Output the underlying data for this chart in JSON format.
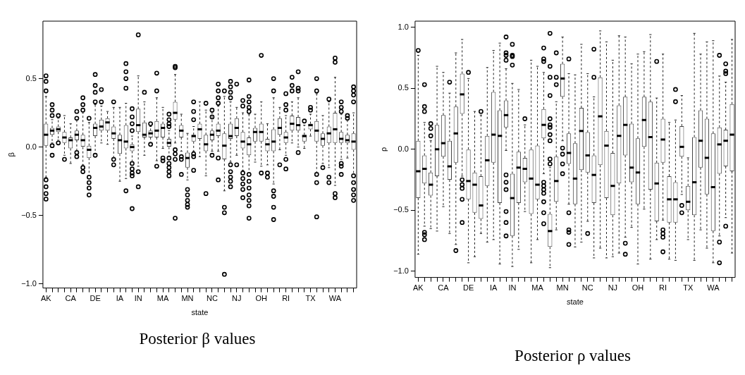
{
  "chart_data": [
    {
      "type": "box",
      "title": "Posterior β values",
      "xlabel": "state",
      "ylabel": "β",
      "categories": [
        "AK",
        null,
        null,
        null,
        "CA",
        null,
        null,
        null,
        "DE",
        null,
        null,
        null,
        "IA",
        null,
        null,
        "IN",
        null,
        null,
        null,
        "MA",
        null,
        null,
        null,
        "MN",
        null,
        null,
        null,
        "NC",
        null,
        null,
        null,
        "NJ",
        null,
        null,
        null,
        "OH",
        null,
        null,
        null,
        "RI",
        null,
        null,
        null,
        "TX",
        null,
        null,
        null,
        "WA",
        null,
        null,
        null
      ],
      "ylim": [
        -1.03,
        0.92
      ],
      "yticks": [
        {
          "value": -1.0,
          "label": "−1.0"
        },
        {
          "value": -0.5,
          "label": "−0.5"
        },
        {
          "value": 0.0,
          "label": "0.0"
        },
        {
          "value": 0.5,
          "label": "0.5"
        }
      ],
      "boxes": [
        {
          "low": -0.22,
          "q1": 0.01,
          "median": 0.09,
          "q3": 0.17,
          "high": 0.37,
          "outliers": [
            0.52,
            0.48,
            0.41,
            -0.24,
            -0.29,
            -0.34,
            -0.38
          ]
        },
        {
          "low": 0.03,
          "q1": 0.09,
          "median": 0.12,
          "q3": 0.14,
          "high": 0.2,
          "outliers": [
            0.31,
            0.27,
            0.23,
            0.01,
            -0.06
          ]
        },
        {
          "low": 0.05,
          "q1": 0.11,
          "median": 0.13,
          "q3": 0.15,
          "high": 0.21,
          "outliers": [
            0.23,
            0.03
          ]
        },
        {
          "low": -0.06,
          "q1": 0.03,
          "median": 0.07,
          "q3": 0.11,
          "high": 0.23,
          "outliers": [
            -0.09
          ]
        },
        {
          "low": -0.12,
          "q1": -0.01,
          "median": 0.05,
          "q3": 0.07,
          "high": 0.17
        },
        {
          "low": -0.03,
          "q1": 0.05,
          "median": 0.09,
          "q3": 0.12,
          "high": 0.2,
          "outliers": [
            0.26,
            0.21,
            -0.04,
            -0.07
          ]
        },
        {
          "low": -0.13,
          "q1": 0.0,
          "median": 0.05,
          "q3": 0.09,
          "high": 0.25,
          "outliers": [
            0.36,
            0.31,
            0.27,
            -0.15,
            -0.18
          ]
        },
        {
          "low": -0.21,
          "q1": -0.08,
          "median": -0.02,
          "q3": 0.01,
          "high": 0.18,
          "outliers": [
            0.21,
            -0.22,
            -0.26,
            -0.3,
            -0.35
          ]
        },
        {
          "low": -0.05,
          "q1": 0.08,
          "median": 0.14,
          "q3": 0.17,
          "high": 0.31,
          "outliers": [
            0.53,
            0.45,
            0.4,
            0.33,
            -0.06
          ]
        },
        {
          "low": 0.03,
          "q1": 0.12,
          "median": 0.15,
          "q3": 0.2,
          "high": 0.3,
          "outliers": [
            0.42,
            0.33
          ]
        },
        {
          "low": 0.02,
          "q1": 0.12,
          "median": 0.18,
          "q3": 0.21,
          "high": 0.26
        },
        {
          "low": -0.08,
          "q1": 0.06,
          "median": 0.1,
          "q3": 0.15,
          "high": 0.29,
          "outliers": [
            0.33,
            -0.09,
            -0.13
          ]
        },
        {
          "low": -0.25,
          "q1": -0.05,
          "median": 0.05,
          "q3": 0.09,
          "high": 0.29
        },
        {
          "low": -0.23,
          "q1": -0.01,
          "median": 0.04,
          "q3": 0.16,
          "high": 0.32,
          "outliers": [
            0.61,
            0.55,
            0.5,
            0.43,
            -0.32
          ]
        },
        {
          "low": -0.11,
          "q1": -0.03,
          "median": 0.0,
          "q3": 0.02,
          "high": 0.08,
          "outliers": [
            0.28,
            0.22,
            0.17,
            0.12,
            -0.12,
            -0.16,
            -0.19,
            -0.21,
            -0.45
          ]
        },
        {
          "low": -0.14,
          "q1": 0.11,
          "median": 0.16,
          "q3": 0.28,
          "high": 0.52,
          "outliers": [
            0.82,
            -0.18,
            -0.29
          ]
        },
        {
          "low": -0.06,
          "q1": 0.07,
          "median": 0.09,
          "q3": 0.18,
          "high": 0.33,
          "outliers": [
            0.4
          ]
        },
        {
          "low": 0.03,
          "q1": 0.07,
          "median": 0.1,
          "q3": 0.12,
          "high": 0.15,
          "outliers": [
            0.17,
            0.02
          ]
        },
        {
          "low": -0.1,
          "q1": 0.07,
          "median": 0.12,
          "q3": 0.19,
          "high": 0.36,
          "outliers": [
            0.54,
            0.41,
            -0.14
          ]
        },
        {
          "low": -0.01,
          "q1": 0.07,
          "median": 0.14,
          "q3": 0.17,
          "high": 0.29,
          "outliers": [
            -0.08,
            -0.1
          ]
        },
        {
          "low": -0.07,
          "q1": 0.0,
          "median": 0.03,
          "q3": 0.06,
          "high": 0.12,
          "outliers": [
            0.24,
            0.2,
            0.17,
            0.15,
            -0.08,
            -0.12,
            -0.15,
            -0.18,
            -0.21
          ]
        },
        {
          "low": 0.03,
          "q1": 0.2,
          "median": 0.25,
          "q3": 0.33,
          "high": 0.53,
          "outliers": [
            0.59,
            0.58,
            -0.02,
            -0.05,
            -0.09,
            -0.52
          ]
        },
        {
          "low": -0.03,
          "q1": 0.07,
          "median": 0.12,
          "q3": 0.16,
          "high": 0.24,
          "outliers": [
            -0.07,
            -0.09,
            -0.2
          ]
        },
        {
          "low": -0.24,
          "q1": -0.15,
          "median": -0.08,
          "q3": -0.04,
          "high": 0.1,
          "outliers": [
            -0.31,
            -0.35,
            -0.39,
            -0.42,
            -0.44
          ]
        },
        {
          "low": -0.03,
          "q1": 0.04,
          "median": 0.08,
          "q3": 0.09,
          "high": 0.15,
          "outliers": [
            0.33,
            0.26,
            0.2,
            -0.05,
            -0.07,
            -0.17
          ]
        },
        {
          "low": -0.07,
          "q1": 0.06,
          "median": 0.13,
          "q3": 0.17,
          "high": 0.33
        },
        {
          "low": -0.21,
          "q1": -0.03,
          "median": 0.02,
          "q3": 0.09,
          "high": 0.27,
          "outliers": [
            0.32,
            -0.34
          ]
        },
        {
          "low": -0.03,
          "q1": 0.05,
          "median": 0.09,
          "q3": 0.12,
          "high": 0.25,
          "outliers": [
            0.27,
            0.22,
            -0.06
          ]
        },
        {
          "low": -0.03,
          "q1": 0.08,
          "median": 0.12,
          "q3": 0.17,
          "high": 0.3,
          "outliers": [
            0.46,
            0.41,
            0.36,
            0.32,
            -0.08,
            -0.24
          ]
        },
        {
          "low": -0.32,
          "q1": -0.09,
          "median": 0.01,
          "q3": 0.1,
          "high": 0.37,
          "outliers": [
            0.41,
            -0.44,
            -0.48,
            -0.93
          ]
        },
        {
          "low": -0.11,
          "q1": 0.06,
          "median": 0.08,
          "q3": 0.17,
          "high": 0.33,
          "outliers": [
            0.48,
            0.44,
            0.4,
            0.36,
            -0.13,
            -0.18,
            -0.22,
            -0.25,
            -0.29
          ]
        },
        {
          "low": -0.06,
          "q1": 0.08,
          "median": 0.14,
          "q3": 0.21,
          "high": 0.29,
          "outliers": [
            0.46,
            -0.13
          ]
        },
        {
          "low": -0.17,
          "q1": -0.01,
          "median": 0.04,
          "q3": 0.11,
          "high": 0.25,
          "outliers": [
            0.34,
            0.3,
            -0.19,
            -0.23,
            -0.27,
            -0.31,
            -0.37
          ]
        },
        {
          "low": -0.19,
          "q1": -0.06,
          "median": 0.02,
          "q3": 0.07,
          "high": 0.24,
          "outliers": [
            0.49,
            0.37,
            0.33,
            0.29,
            0.26,
            -0.2,
            -0.25,
            -0.3,
            -0.35,
            -0.39,
            -0.43,
            -0.52
          ]
        },
        {
          "low": -0.11,
          "q1": 0.04,
          "median": 0.11,
          "q3": 0.14,
          "high": 0.24
        },
        {
          "low": -0.14,
          "q1": 0.04,
          "median": 0.11,
          "q3": 0.17,
          "high": 0.33,
          "outliers": [
            0.67,
            -0.19
          ]
        },
        {
          "low": -0.13,
          "q1": -0.03,
          "median": 0.02,
          "q3": 0.06,
          "high": 0.17,
          "outliers": [
            -0.19,
            -0.22
          ]
        },
        {
          "low": -0.27,
          "q1": -0.03,
          "median": 0.04,
          "q3": 0.13,
          "high": 0.36,
          "outliers": [
            0.5,
            0.41,
            -0.32,
            -0.36,
            -0.44,
            -0.53
          ]
        },
        {
          "low": -0.02,
          "q1": 0.09,
          "median": 0.14,
          "q3": 0.21,
          "high": 0.29,
          "outliers": [
            -0.13
          ]
        },
        {
          "low": -0.06,
          "q1": 0.03,
          "median": 0.07,
          "q3": 0.11,
          "high": 0.23,
          "outliers": [
            0.39,
            0.31,
            0.27,
            -0.09,
            -0.16
          ]
        },
        {
          "low": 0.03,
          "q1": 0.12,
          "median": 0.17,
          "q3": 0.23,
          "high": 0.33,
          "outliers": [
            0.51,
            0.45,
            0.41
          ]
        },
        {
          "low": 0.0,
          "q1": 0.12,
          "median": 0.16,
          "q3": 0.22,
          "high": 0.36,
          "outliers": [
            0.55,
            0.43,
            0.41,
            -0.04
          ]
        },
        {
          "low": -0.01,
          "q1": 0.04,
          "median": 0.08,
          "q3": 0.09,
          "high": 0.16,
          "outliers": [
            0.19
          ]
        },
        {
          "low": 0.08,
          "q1": 0.13,
          "median": 0.16,
          "q3": 0.17,
          "high": 0.24,
          "outliers": [
            0.29,
            0.27
          ]
        },
        {
          "low": -0.19,
          "q1": 0.04,
          "median": 0.12,
          "q3": 0.19,
          "high": 0.39,
          "outliers": [
            0.5,
            0.41,
            -0.2,
            -0.26,
            -0.51
          ]
        },
        {
          "low": -0.12,
          "q1": 0.01,
          "median": 0.06,
          "q3": 0.1,
          "high": 0.23,
          "outliers": [
            -0.15
          ]
        },
        {
          "low": -0.15,
          "q1": 0.03,
          "median": 0.1,
          "q3": 0.15,
          "high": 0.33,
          "outliers": [
            0.35,
            -0.22,
            -0.26
          ]
        },
        {
          "low": -0.28,
          "q1": 0.03,
          "median": 0.13,
          "q3": 0.25,
          "high": 0.51,
          "outliers": [
            0.65,
            0.62,
            -0.34,
            -0.37
          ]
        },
        {
          "low": -0.09,
          "q1": 0.03,
          "median": 0.06,
          "q3": 0.11,
          "high": 0.24,
          "outliers": [
            0.33,
            0.29,
            0.26,
            -0.12,
            -0.14,
            -0.2
          ]
        },
        {
          "low": -0.08,
          "q1": 0.03,
          "median": 0.05,
          "q3": 0.09,
          "high": 0.2,
          "outliers": [
            0.23,
            0.21
          ]
        },
        {
          "low": -0.2,
          "q1": -0.02,
          "median": 0.04,
          "q3": 0.1,
          "high": 0.25,
          "outliers": [
            0.44,
            0.41,
            0.38,
            0.33,
            -0.21,
            -0.26,
            -0.31,
            -0.35,
            -0.39
          ]
        }
      ]
    },
    {
      "type": "box",
      "title": "Posterior ρ values",
      "xlabel": "state",
      "ylabel": "ρ",
      "categories": [
        "AK",
        null,
        null,
        null,
        "CA",
        null,
        null,
        null,
        "DE",
        null,
        null,
        null,
        "IA",
        null,
        null,
        "IN",
        null,
        null,
        null,
        "MA",
        null,
        null,
        null,
        "MN",
        null,
        null,
        null,
        "NC",
        null,
        null,
        null,
        "NJ",
        null,
        null,
        null,
        "OH",
        null,
        null,
        null,
        "RI",
        null,
        null,
        null,
        "TX",
        null,
        null,
        null,
        "WA",
        null,
        null,
        null
      ],
      "ylim": [
        -1.05,
        1.05
      ],
      "yticks": [
        {
          "value": -1.0,
          "label": "−1.0"
        },
        {
          "value": -0.5,
          "label": "−0.5"
        },
        {
          "value": 0.0,
          "label": "0.0"
        },
        {
          "value": 0.5,
          "label": "0.5"
        },
        {
          "value": 1.0,
          "label": "1.0"
        }
      ],
      "boxes": [
        {
          "low": -0.86,
          "q1": -0.4,
          "median": -0.18,
          "q3": 0.07,
          "high": 0.77,
          "outliers": [
            0.81
          ]
        },
        {
          "low": -0.63,
          "q1": -0.28,
          "median": -0.16,
          "q3": -0.05,
          "high": 0.22,
          "outliers": [
            0.53,
            0.35,
            0.31,
            -0.68,
            -0.7,
            -0.74
          ]
        },
        {
          "low": -0.65,
          "q1": -0.38,
          "median": -0.29,
          "q3": -0.19,
          "high": 0.07,
          "outliers": [
            0.21,
            0.17,
            0.11
          ]
        },
        {
          "low": -0.67,
          "q1": -0.22,
          "median": 0.0,
          "q3": 0.2,
          "high": 0.68
        },
        {
          "low": -0.47,
          "q1": -0.06,
          "median": 0.05,
          "q3": 0.28,
          "high": 0.63
        },
        {
          "low": -0.69,
          "q1": -0.25,
          "median": -0.14,
          "q3": 0.07,
          "high": 0.46,
          "outliers": [
            0.55
          ]
        },
        {
          "low": -0.78,
          "q1": -0.11,
          "median": 0.13,
          "q3": 0.35,
          "high": 0.79,
          "outliers": [
            -0.83
          ]
        },
        {
          "low": -0.22,
          "q1": 0.29,
          "median": 0.45,
          "q3": 0.62,
          "high": 0.9,
          "outliers": [
            -0.25,
            -0.29,
            -0.32,
            -0.41,
            -0.6
          ]
        },
        {
          "low": -0.93,
          "q1": -0.41,
          "median": -0.26,
          "q3": 0.0,
          "high": 0.58,
          "outliers": [
            0.63
          ]
        },
        {
          "low": -0.88,
          "q1": -0.52,
          "median": -0.29,
          "q3": -0.19,
          "high": 0.31
        },
        {
          "low": -0.69,
          "q1": -0.57,
          "median": -0.46,
          "q3": -0.22,
          "high": 0.28,
          "outliers": [
            0.31
          ]
        },
        {
          "low": -0.76,
          "q1": -0.3,
          "median": -0.09,
          "q3": 0.11,
          "high": 0.67
        },
        {
          "low": -0.74,
          "q1": -0.11,
          "median": 0.12,
          "q3": 0.47,
          "high": 0.81
        },
        {
          "low": -0.94,
          "q1": -0.44,
          "median": 0.11,
          "q3": 0.32,
          "high": 0.87
        },
        {
          "low": -0.01,
          "q1": 0.18,
          "median": 0.28,
          "q3": 0.4,
          "high": 0.66,
          "outliers": [
            0.92,
            0.79,
            0.77,
            0.73,
            -0.21,
            -0.27,
            -0.33,
            -0.51,
            -0.6,
            -0.71
          ]
        },
        {
          "low": -0.96,
          "q1": -0.71,
          "median": -0.4,
          "q3": -0.2,
          "high": 0.54,
          "outliers": [
            0.86,
            0.77,
            0.76,
            0.69
          ]
        },
        {
          "low": -0.82,
          "q1": -0.44,
          "median": -0.15,
          "q3": -0.02,
          "high": 0.49
        },
        {
          "low": -0.51,
          "q1": -0.27,
          "median": -0.16,
          "q3": -0.07,
          "high": 0.2,
          "outliers": [
            0.25
          ]
        },
        {
          "low": -0.93,
          "q1": -0.53,
          "median": -0.24,
          "q3": 0.0,
          "high": 0.73
        },
        {
          "low": -0.74,
          "q1": -0.41,
          "median": -0.29,
          "q3": 0.03,
          "high": 0.68
        },
        {
          "low": -0.2,
          "q1": 0.09,
          "median": 0.2,
          "q3": 0.33,
          "high": 0.63,
          "outliers": [
            0.83,
            0.74,
            0.72,
            -0.27,
            -0.3,
            -0.33,
            -0.36,
            -0.43,
            -0.52,
            -0.61
          ]
        },
        {
          "low": -0.97,
          "q1": -0.8,
          "median": -0.67,
          "q3": -0.53,
          "high": -0.15,
          "outliers": [
            0.95,
            0.68,
            0.59,
            0.44,
            0.25,
            0.2,
            0.18,
            0.12,
            0.07,
            -0.08,
            -0.12
          ]
        },
        {
          "low": -0.66,
          "q1": -0.43,
          "median": -0.26,
          "q3": -0.06,
          "high": 0.39,
          "outliers": [
            0.79,
            0.59,
            0.53
          ]
        },
        {
          "low": 0.07,
          "q1": 0.43,
          "median": 0.58,
          "q3": 0.7,
          "high": 0.92,
          "outliers": [
            0.01,
            -0.04,
            -0.12,
            -0.2
          ]
        },
        {
          "low": -0.45,
          "q1": -0.12,
          "median": -0.03,
          "q3": 0.13,
          "high": 0.62,
          "outliers": [
            0.74,
            -0.52,
            -0.66,
            -0.68,
            -0.78
          ]
        },
        {
          "low": -0.8,
          "q1": -0.45,
          "median": -0.24,
          "q3": 0.05,
          "high": 0.61
        },
        {
          "low": -0.76,
          "q1": -0.17,
          "median": 0.15,
          "q3": 0.34,
          "high": 0.86
        },
        {
          "low": -0.59,
          "q1": -0.19,
          "median": -0.05,
          "q3": 0.14,
          "high": 0.62,
          "outliers": [
            -0.69
          ]
        },
        {
          "low": -0.89,
          "q1": -0.44,
          "median": -0.21,
          "q3": -0.05,
          "high": 0.43,
          "outliers": [
            0.82,
            0.59
          ]
        },
        {
          "low": -0.81,
          "q1": -0.13,
          "median": 0.27,
          "q3": 0.59,
          "high": 0.97
        },
        {
          "low": -0.89,
          "q1": -0.4,
          "median": 0.03,
          "q3": 0.15,
          "high": 0.88
        },
        {
          "low": -0.88,
          "q1": -0.54,
          "median": -0.3,
          "q3": -0.03,
          "high": 0.73
        },
        {
          "low": -0.85,
          "q1": -0.28,
          "median": 0.11,
          "q3": 0.36,
          "high": 0.93
        },
        {
          "low": -0.72,
          "q1": -0.05,
          "median": 0.2,
          "q3": 0.43,
          "high": 0.92,
          "outliers": [
            -0.77,
            -0.86
          ]
        },
        {
          "low": -0.64,
          "q1": -0.27,
          "median": -0.15,
          "q3": 0.21,
          "high": 0.7
        },
        {
          "low": -0.94,
          "q1": -0.45,
          "median": -0.19,
          "q3": 0.09,
          "high": 0.78
        },
        {
          "low": -0.49,
          "q1": 0.02,
          "median": 0.24,
          "q3": 0.43,
          "high": 0.8
        },
        {
          "low": -0.9,
          "q1": -0.33,
          "median": 0.1,
          "q3": 0.39,
          "high": 0.94
        },
        {
          "low": -0.74,
          "q1": -0.59,
          "median": -0.28,
          "q3": -0.11,
          "high": 0.42,
          "outliers": [
            0.72
          ]
        },
        {
          "low": -0.58,
          "q1": -0.11,
          "median": 0.08,
          "q3": 0.25,
          "high": 0.78,
          "outliers": [
            -0.66,
            -0.69,
            -0.72,
            -0.84
          ]
        },
        {
          "low": -0.9,
          "q1": -0.6,
          "median": -0.41,
          "q3": -0.22,
          "high": 0.22
        },
        {
          "low": -0.91,
          "q1": -0.6,
          "median": -0.41,
          "q3": -0.27,
          "high": 0.24,
          "outliers": [
            0.49,
            0.39
          ]
        },
        {
          "low": -0.37,
          "q1": -0.06,
          "median": 0.02,
          "q3": 0.19,
          "high": 0.44,
          "outliers": [
            -0.46,
            -0.52
          ]
        },
        {
          "low": -0.74,
          "q1": -0.5,
          "median": -0.43,
          "q3": -0.3,
          "high": -0.07
        },
        {
          "low": -0.91,
          "q1": -0.54,
          "median": -0.27,
          "q3": 0.1,
          "high": 0.95
        },
        {
          "low": -0.66,
          "q1": -0.15,
          "median": 0.07,
          "q3": 0.32,
          "high": 0.78
        },
        {
          "low": -0.81,
          "q1": -0.37,
          "median": -0.07,
          "q3": 0.25,
          "high": 0.88
        },
        {
          "low": -0.93,
          "q1": -0.67,
          "median": -0.31,
          "q3": 0.13,
          "high": 0.89
        },
        {
          "low": -0.71,
          "q1": -0.2,
          "median": 0.04,
          "q3": 0.18,
          "high": 0.6,
          "outliers": [
            0.77,
            -0.76,
            -0.93
          ]
        },
        {
          "low": -0.56,
          "q1": -0.14,
          "median": 0.07,
          "q3": 0.16,
          "high": 0.55,
          "outliers": [
            0.7,
            0.64,
            0.62,
            -0.63
          ]
        },
        {
          "low": -0.85,
          "q1": -0.18,
          "median": 0.12,
          "q3": 0.37,
          "high": 0.9
        }
      ]
    }
  ]
}
